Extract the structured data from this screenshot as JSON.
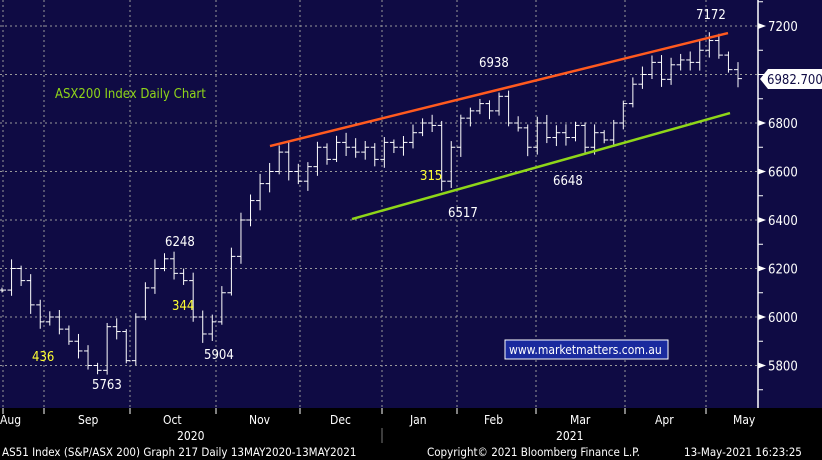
{
  "chart_data": {
    "type": "ohlc-line",
    "title": "ASX200 Index Daily Chart",
    "ylim": [
      5700,
      7300
    ],
    "yticks": [
      5800,
      6000,
      6200,
      6400,
      6600,
      6800,
      7000,
      7200
    ],
    "ytick_labels": [
      "5800",
      "6000",
      "6200",
      "6400",
      "6600",
      "7200",
      "6800"
    ],
    "last_price_label": "6982.700",
    "last_price": 6982.7,
    "x_months": [
      "Aug",
      "Sep",
      "Oct",
      "Nov",
      "Dec",
      "Jan",
      "Feb",
      "Mar",
      "Apr",
      "May"
    ],
    "x_years": [
      "2020",
      "2021"
    ],
    "closes": [
      6111,
      6200,
      6150,
      6050,
      5980,
      6000,
      5950,
      5900,
      5860,
      5800,
      5780,
      5960,
      5940,
      5820,
      6000,
      6120,
      6200,
      6240,
      6180,
      6150,
      6000,
      5930,
      5980,
      6100,
      6250,
      6400,
      6480,
      6550,
      6600,
      6680,
      6600,
      6560,
      6620,
      6700,
      6650,
      6720,
      6700,
      6680,
      6700,
      6650,
      6720,
      6700,
      6720,
      6760,
      6800,
      6790,
      6560,
      6700,
      6820,
      6850,
      6880,
      6850,
      6910,
      6800,
      6780,
      6700,
      6800,
      6740,
      6760,
      6740,
      6790,
      6700,
      6760,
      6730,
      6800,
      6880,
      6960,
      7000,
      7050,
      6980,
      7040,
      7060,
      7050,
      7100,
      7140,
      7080,
      7020,
      6983
    ],
    "trendlines": [
      {
        "name": "resistance",
        "color": "#ff5a1f",
        "from": 6705,
        "to": 7171
      },
      {
        "name": "support",
        "color": "#8fd619",
        "from": 6404,
        "to": 6841
      }
    ],
    "annotations": [
      {
        "text": "7172",
        "color": "#ffffff"
      },
      {
        "text": "6938",
        "color": "#ffffff"
      },
      {
        "text": "315",
        "color": "#ffff33"
      },
      {
        "text": "6517",
        "color": "#ffffff"
      },
      {
        "text": "6648",
        "color": "#ffffff"
      },
      {
        "text": "6248",
        "color": "#ffffff"
      },
      {
        "text": "344",
        "color": "#ffff33"
      },
      {
        "text": "5904",
        "color": "#ffffff"
      },
      {
        "text": "436",
        "color": "#ffff33"
      },
      {
        "text": "5763",
        "color": "#ffffff"
      }
    ],
    "website": "www.marketmatters.com.au"
  },
  "footer": {
    "left": "AS51 Index (S&P/ASX 200) Graph 217  Daily 13MAY2020-13MAY2021",
    "copyright": "Copyright© 2021 Bloomberg Finance L.P.",
    "timestamp": "13-May-2021 16:23:25"
  },
  "colors": {
    "background": "#0f0b44",
    "price": "#ffffff",
    "grid": "#9a9a9a"
  }
}
